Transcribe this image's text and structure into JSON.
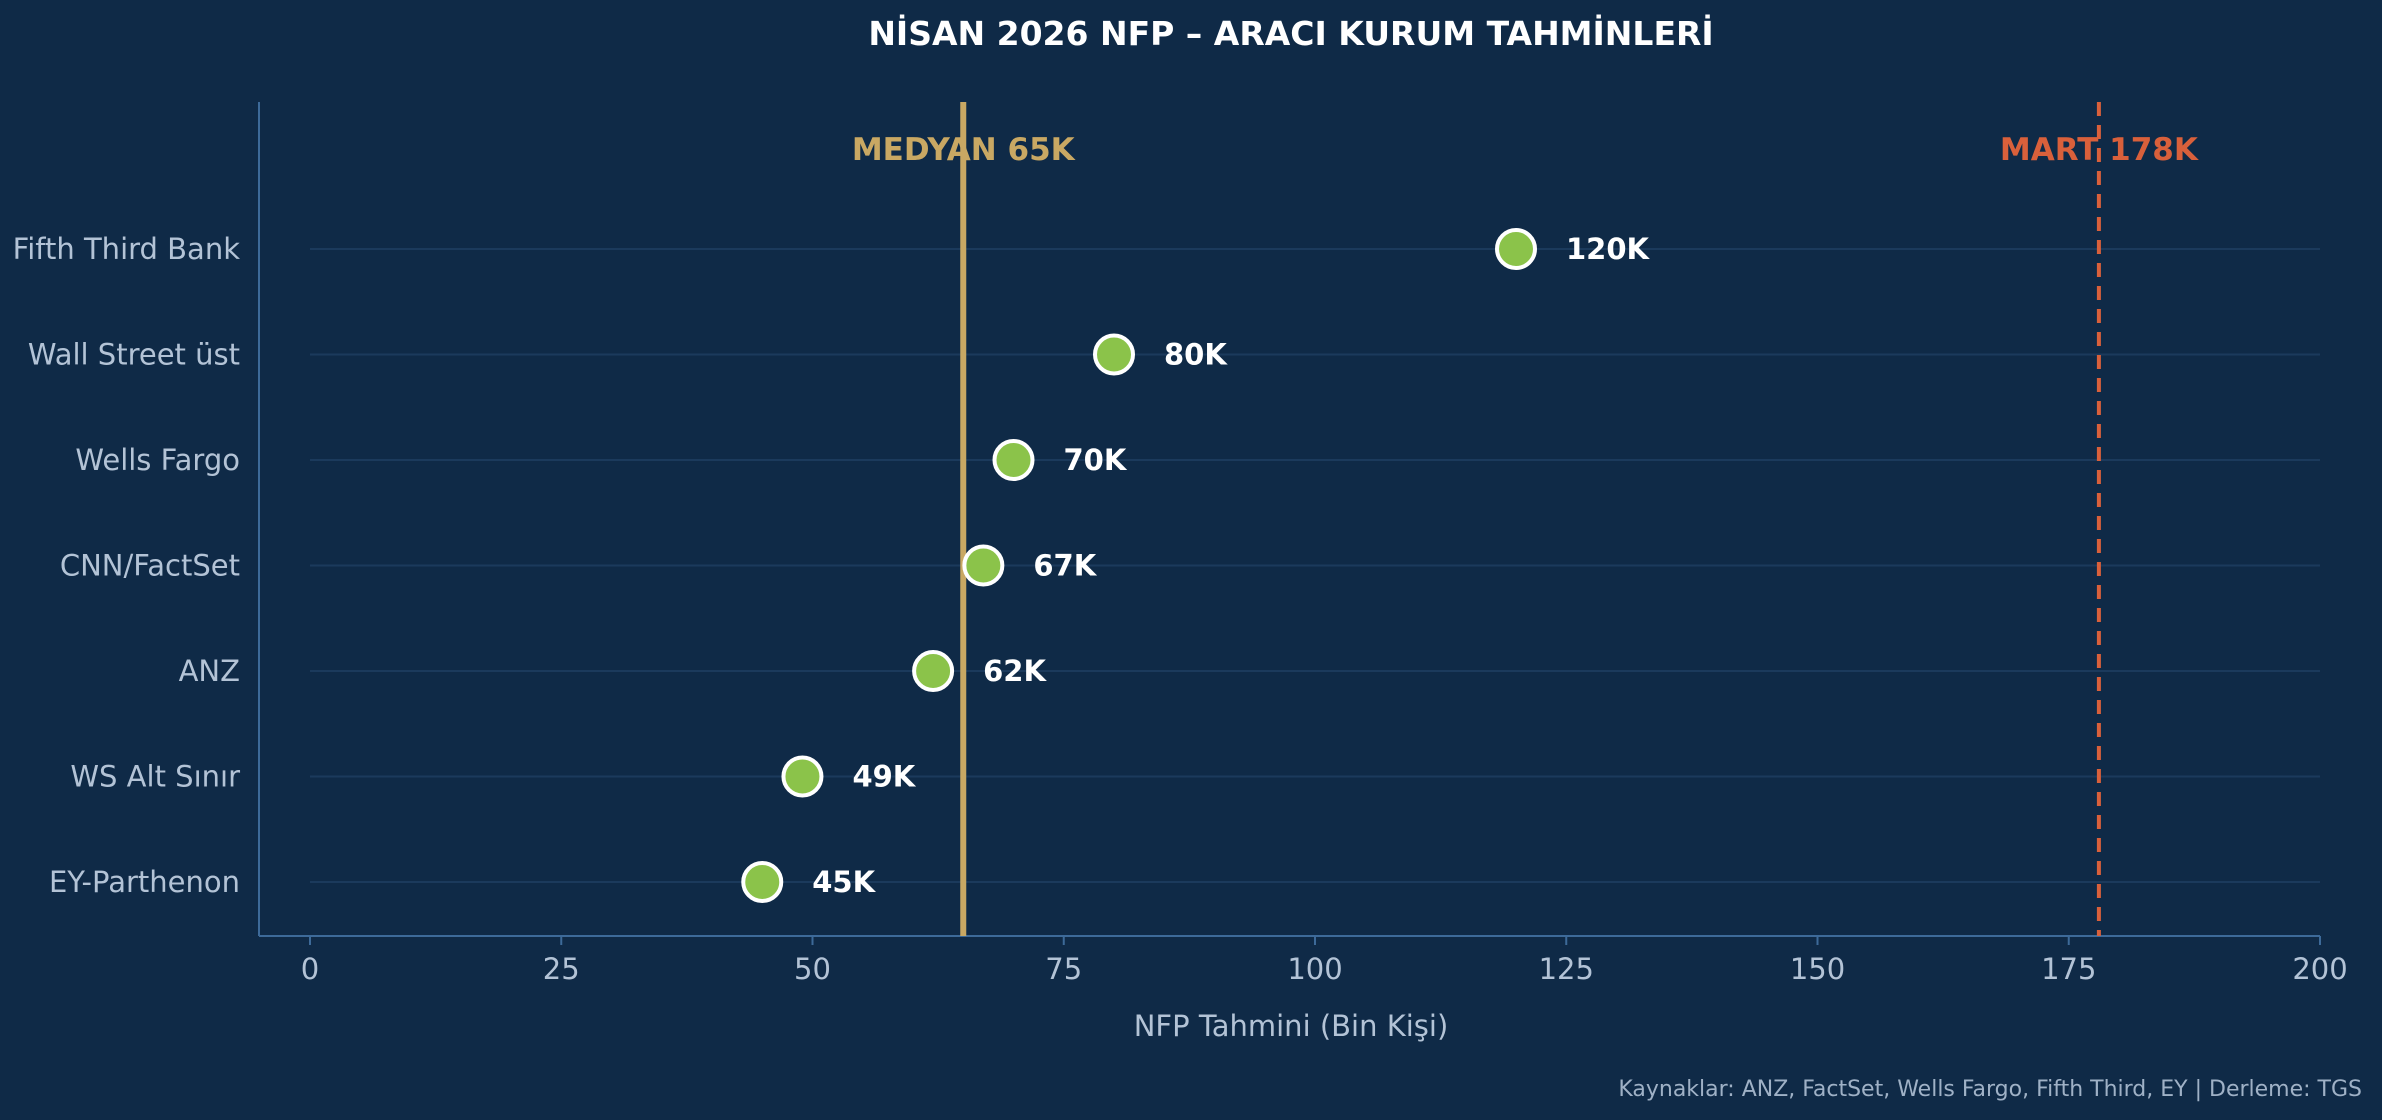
{
  "chart_data": {
    "type": "scatter",
    "title": "NİSAN 2026 NFP – ARACI KURUM TAHMİNLERİ",
    "xlabel": "NFP Tahmini (Bin Kişi)",
    "ylabel": "",
    "xlim": [
      0,
      200
    ],
    "xticks": [
      0,
      25,
      50,
      75,
      100,
      125,
      150,
      175,
      200
    ],
    "categories": [
      "Fifth Third Bank",
      "Wall Street üst",
      "Wells Fargo",
      "CNN/FactSet",
      "ANZ",
      "WS Alt Sınır",
      "EY-Parthenon"
    ],
    "values": [
      120,
      80,
      70,
      67,
      62,
      49,
      45
    ],
    "value_labels": [
      "120K",
      "80K",
      "70K",
      "67K",
      "62K",
      "49K",
      "45K"
    ],
    "reference_lines": [
      {
        "label": "MEDYAN 65K",
        "value": 65,
        "style": "solid",
        "color": "#c9a863"
      },
      {
        "label": "MART 178K",
        "value": 178,
        "style": "dashed",
        "color": "#d9603b"
      }
    ],
    "colors": {
      "background": "#0f2a47",
      "marker": "#8bc34a",
      "marker_edge": "#ffffff",
      "grid": "#1b3a5c",
      "axis": "#3d6a99"
    },
    "grid": "horizontal",
    "source_note": "Kaynaklar: ANZ, FactSet, Wells Fargo, Fifth Third, EY | Derleme: TGS"
  }
}
